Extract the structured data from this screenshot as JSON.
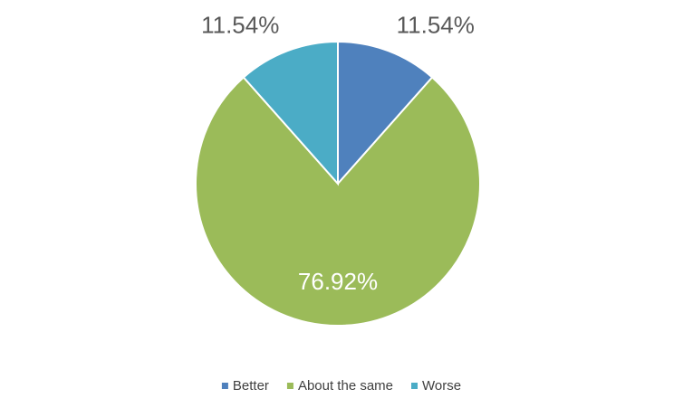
{
  "chart_data": {
    "type": "pie",
    "categories": [
      "Better",
      "About the same",
      "Worse"
    ],
    "values": [
      11.54,
      76.92,
      11.54
    ],
    "value_labels": [
      "11.54%",
      "76.92%",
      "11.54%"
    ],
    "colors": [
      "#4f81bd",
      "#9bbb59",
      "#4bacc6"
    ],
    "legend": "bottom"
  }
}
